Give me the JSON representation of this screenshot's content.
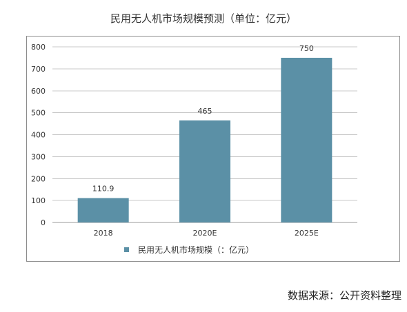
{
  "chart_data": {
    "type": "bar",
    "title": "民用无人机市场规模预测（单位：亿元）",
    "categories": [
      "2018",
      "2020E",
      "2025E"
    ],
    "series": [
      {
        "name": "民用无人机市场规模（：亿元）",
        "values": [
          110.9,
          465,
          750
        ],
        "data_labels": [
          "110.9",
          "465",
          "750"
        ],
        "color": "#5b90a6"
      }
    ],
    "ylim": [
      0,
      800
    ],
    "yticks": [
      0,
      100,
      200,
      300,
      400,
      500,
      600,
      700,
      800
    ],
    "xlabel": "",
    "ylabel": "",
    "grid": true,
    "legend": "bottom"
  },
  "source": "数据来源：公开资料整理"
}
